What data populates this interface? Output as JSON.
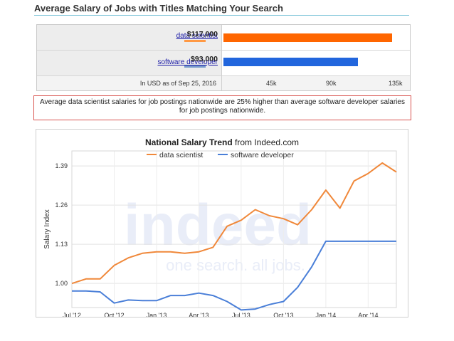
{
  "header": {
    "title": "Average Salary of Jobs with Titles Matching Your Search"
  },
  "salary_compare": {
    "jobs": [
      {
        "label": "data scientist",
        "salary": "$117,000",
        "value": 117000,
        "color": "#ff6600",
        "mini_color": "#ff9944"
      },
      {
        "label": "software developer",
        "salary": "$93,000",
        "value": 93000,
        "color": "#2266dd",
        "mini_color": "#7799cc"
      }
    ],
    "as_of": "In USD as of Sep 25, 2016",
    "axis_ticks": [
      "45k",
      "90k",
      "135k"
    ],
    "axis_max": 135000
  },
  "note": "Average data scientist salaries for job postings nationwide are 25% higher than average software developer salaries for job postings nationwide.",
  "chart_data": {
    "type": "line",
    "title_bold": "National Salary Trend",
    "title_rest": " from Indeed.com",
    "ylabel": "Salary Index",
    "xlabel": "",
    "watermark": {
      "brand": "indeed",
      "tagline": "one search. all jobs."
    },
    "x": [
      "Jul '12",
      "Aug '12",
      "Sep '12",
      "Oct '12",
      "Nov '12",
      "Dec '12",
      "Jan '13",
      "Feb '13",
      "Mar '13",
      "Apr '13",
      "May '13",
      "Jun '13",
      "Jul '13",
      "Aug '13",
      "Sep '13",
      "Oct '13",
      "Nov '13",
      "Dec '13",
      "Jan '14",
      "Feb '14",
      "Mar '14",
      "Apr '14",
      "May '14",
      "Jun '14"
    ],
    "x_tick_labels": [
      "Jul '12",
      "Oct '12",
      "Jan '13",
      "Apr '13",
      "Jul '13",
      "Oct '13",
      "Jan '14",
      "Apr '14"
    ],
    "y_ticks": [
      1.0,
      1.13,
      1.26,
      1.39
    ],
    "y_tick_labels": [
      "1.00",
      "1.13",
      "1.26",
      "1.39"
    ],
    "ylim": [
      0.92,
      1.44
    ],
    "grid": true,
    "legend_position": "top",
    "series": [
      {
        "name": "data scientist",
        "color": "#f0883a",
        "values": [
          1.0,
          1.015,
          1.015,
          1.06,
          1.085,
          1.1,
          1.105,
          1.105,
          1.1,
          1.105,
          1.12,
          1.19,
          1.21,
          1.245,
          1.225,
          1.215,
          1.195,
          1.245,
          1.31,
          1.25,
          1.34,
          1.365,
          1.4,
          1.37
        ]
      },
      {
        "name": "software developer",
        "color": "#4a7fd8",
        "values": [
          0.975,
          0.975,
          0.972,
          0.935,
          0.945,
          0.943,
          0.943,
          0.96,
          0.96,
          0.968,
          0.96,
          0.94,
          0.912,
          0.915,
          0.93,
          0.94,
          0.987,
          1.055,
          1.14,
          1.14,
          1.14,
          1.14,
          1.14,
          1.14
        ]
      }
    ]
  }
}
